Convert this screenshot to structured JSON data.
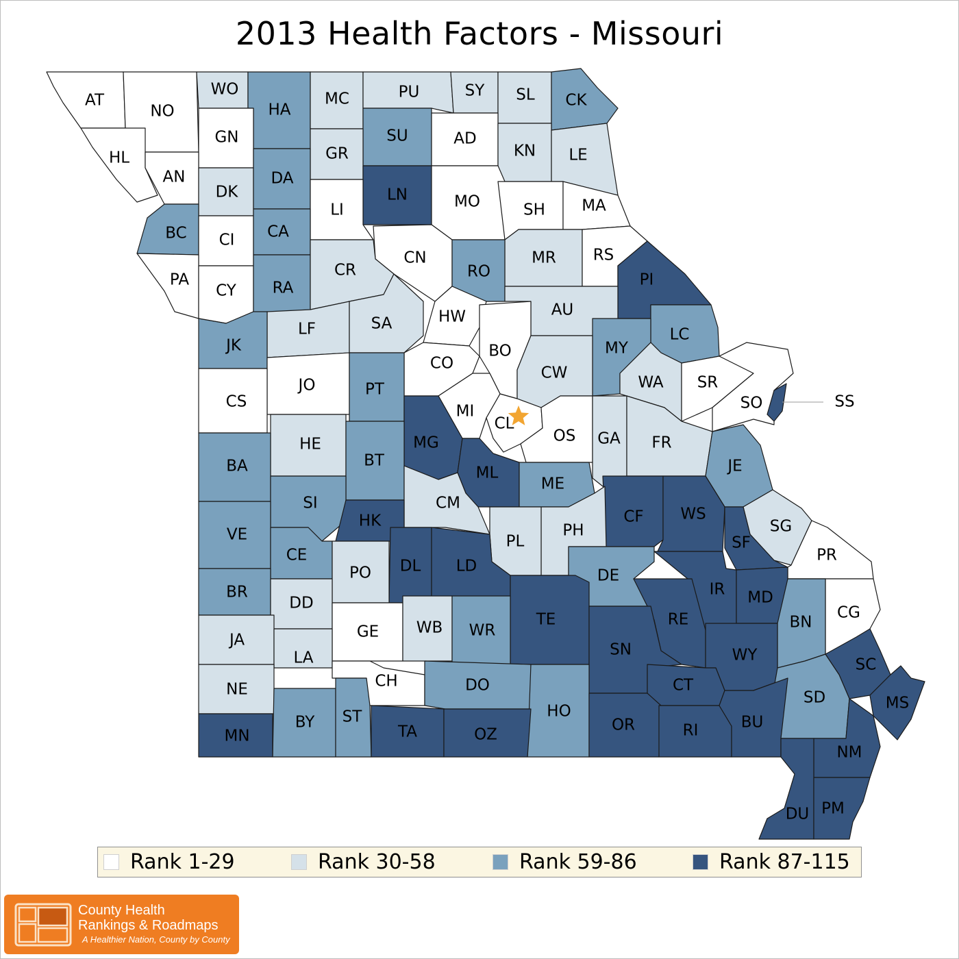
{
  "title": "2013 Health Factors - Missouri",
  "colors": {
    "rank_1_29": "#ffffff",
    "rank_30_58": "#d5e1e9",
    "rank_59_86": "#7aa1bd",
    "rank_87_115": "#36557f",
    "county_border": "#1a1a1a",
    "marker": "#f2a531",
    "legend_background": "#fbf6e2",
    "logo_background": "#ef7d22"
  },
  "legend": [
    {
      "label": "Rank 1-29",
      "class": "r1"
    },
    {
      "label": "Rank 30-58",
      "class": "r2"
    },
    {
      "label": "Rank 59-86",
      "class": "r3"
    },
    {
      "label": "Rank 87-115",
      "class": "r4"
    }
  ],
  "counties": [
    {
      "abbr": "AT",
      "class": "r1"
    },
    {
      "abbr": "NO",
      "class": "r1"
    },
    {
      "abbr": "WO",
      "class": "r2"
    },
    {
      "abbr": "HA",
      "class": "r3"
    },
    {
      "abbr": "MC",
      "class": "r2"
    },
    {
      "abbr": "PU",
      "class": "r2"
    },
    {
      "abbr": "SY",
      "class": "r2"
    },
    {
      "abbr": "SL",
      "class": "r2"
    },
    {
      "abbr": "CK",
      "class": "r3"
    },
    {
      "abbr": "HL",
      "class": "r1"
    },
    {
      "abbr": "GN",
      "class": "r1"
    },
    {
      "abbr": "SU",
      "class": "r3"
    },
    {
      "abbr": "GR",
      "class": "r2"
    },
    {
      "abbr": "AD",
      "class": "r1"
    },
    {
      "abbr": "KN",
      "class": "r2"
    },
    {
      "abbr": "LE",
      "class": "r2"
    },
    {
      "abbr": "AN",
      "class": "r1"
    },
    {
      "abbr": "DK",
      "class": "r2"
    },
    {
      "abbr": "DA",
      "class": "r3"
    },
    {
      "abbr": "LN",
      "class": "r4"
    },
    {
      "abbr": "LI",
      "class": "r1"
    },
    {
      "abbr": "MO",
      "class": "r1"
    },
    {
      "abbr": "SH",
      "class": "r1"
    },
    {
      "abbr": "MA",
      "class": "r1"
    },
    {
      "abbr": "BC",
      "class": "r3"
    },
    {
      "abbr": "CI",
      "class": "r1"
    },
    {
      "abbr": "CA",
      "class": "r3"
    },
    {
      "abbr": "CN",
      "class": "r1"
    },
    {
      "abbr": "MR",
      "class": "r2"
    },
    {
      "abbr": "RS",
      "class": "r1"
    },
    {
      "abbr": "PA",
      "class": "r1"
    },
    {
      "abbr": "CY",
      "class": "r1"
    },
    {
      "abbr": "RA",
      "class": "r3"
    },
    {
      "abbr": "CR",
      "class": "r2"
    },
    {
      "abbr": "RO",
      "class": "r3"
    },
    {
      "abbr": "PI",
      "class": "r4"
    },
    {
      "abbr": "AU",
      "class": "r2"
    },
    {
      "abbr": "HW",
      "class": "r1"
    },
    {
      "abbr": "LF",
      "class": "r2"
    },
    {
      "abbr": "SA",
      "class": "r2"
    },
    {
      "abbr": "JK",
      "class": "r3"
    },
    {
      "abbr": "LC",
      "class": "r3"
    },
    {
      "abbr": "BO",
      "class": "r1"
    },
    {
      "abbr": "MY",
      "class": "r3"
    },
    {
      "abbr": "CO",
      "class": "r1"
    },
    {
      "abbr": "CW",
      "class": "r2"
    },
    {
      "abbr": "JO",
      "class": "r1"
    },
    {
      "abbr": "PT",
      "class": "r3"
    },
    {
      "abbr": "WA",
      "class": "r2"
    },
    {
      "abbr": "SR",
      "class": "r1"
    },
    {
      "abbr": "CS",
      "class": "r1"
    },
    {
      "abbr": "SO",
      "class": "r1"
    },
    {
      "abbr": "SS",
      "class": "r4"
    },
    {
      "abbr": "MI",
      "class": "r1"
    },
    {
      "abbr": "CL",
      "class": "r1"
    },
    {
      "abbr": "MG",
      "class": "r4"
    },
    {
      "abbr": "OS",
      "class": "r1"
    },
    {
      "abbr": "GA",
      "class": "r2"
    },
    {
      "abbr": "FR",
      "class": "r2"
    },
    {
      "abbr": "HE",
      "class": "r2"
    },
    {
      "abbr": "BT",
      "class": "r3"
    },
    {
      "abbr": "BA",
      "class": "r3"
    },
    {
      "abbr": "ML",
      "class": "r4"
    },
    {
      "abbr": "JE",
      "class": "r3"
    },
    {
      "abbr": "ME",
      "class": "r3"
    },
    {
      "abbr": "CM",
      "class": "r2"
    },
    {
      "abbr": "SI",
      "class": "r3"
    },
    {
      "abbr": "CF",
      "class": "r4"
    },
    {
      "abbr": "WS",
      "class": "r4"
    },
    {
      "abbr": "HK",
      "class": "r4"
    },
    {
      "abbr": "VE",
      "class": "r3"
    },
    {
      "abbr": "SG",
      "class": "r2"
    },
    {
      "abbr": "PH",
      "class": "r2"
    },
    {
      "abbr": "PL",
      "class": "r2"
    },
    {
      "abbr": "SF",
      "class": "r4"
    },
    {
      "abbr": "CE",
      "class": "r3"
    },
    {
      "abbr": "DL",
      "class": "r4"
    },
    {
      "abbr": "LD",
      "class": "r4"
    },
    {
      "abbr": "PR",
      "class": "r1"
    },
    {
      "abbr": "PO",
      "class": "r2"
    },
    {
      "abbr": "DE",
      "class": "r3"
    },
    {
      "abbr": "IR",
      "class": "r4"
    },
    {
      "abbr": "BR",
      "class": "r3"
    },
    {
      "abbr": "MD",
      "class": "r4"
    },
    {
      "abbr": "DD",
      "class": "r2"
    },
    {
      "abbr": "TE",
      "class": "r4"
    },
    {
      "abbr": "RE",
      "class": "r4"
    },
    {
      "abbr": "CG",
      "class": "r1"
    },
    {
      "abbr": "BN",
      "class": "r3"
    },
    {
      "abbr": "GE",
      "class": "r1"
    },
    {
      "abbr": "WB",
      "class": "r2"
    },
    {
      "abbr": "WR",
      "class": "r3"
    },
    {
      "abbr": "JA",
      "class": "r2"
    },
    {
      "abbr": "SN",
      "class": "r4"
    },
    {
      "abbr": "WY",
      "class": "r4"
    },
    {
      "abbr": "LA",
      "class": "r2"
    },
    {
      "abbr": "SC",
      "class": "r4"
    },
    {
      "abbr": "CH",
      "class": "r1"
    },
    {
      "abbr": "DO",
      "class": "r3"
    },
    {
      "abbr": "CT",
      "class": "r4"
    },
    {
      "abbr": "NE",
      "class": "r2"
    },
    {
      "abbr": "SD",
      "class": "r3"
    },
    {
      "abbr": "MS",
      "class": "r4"
    },
    {
      "abbr": "HO",
      "class": "r3"
    },
    {
      "abbr": "BY",
      "class": "r3"
    },
    {
      "abbr": "ST",
      "class": "r3"
    },
    {
      "abbr": "MN",
      "class": "r4"
    },
    {
      "abbr": "TA",
      "class": "r4"
    },
    {
      "abbr": "OZ",
      "class": "r4"
    },
    {
      "abbr": "OR",
      "class": "r4"
    },
    {
      "abbr": "RI",
      "class": "r4"
    },
    {
      "abbr": "BU",
      "class": "r4"
    },
    {
      "abbr": "NM",
      "class": "r4"
    },
    {
      "abbr": "DU",
      "class": "r4"
    },
    {
      "abbr": "PM",
      "class": "r4"
    }
  ],
  "logo": {
    "line1": "County Health",
    "line2": "Rankings & Roadmaps",
    "tagline": "A Healthier Nation, County by County"
  }
}
